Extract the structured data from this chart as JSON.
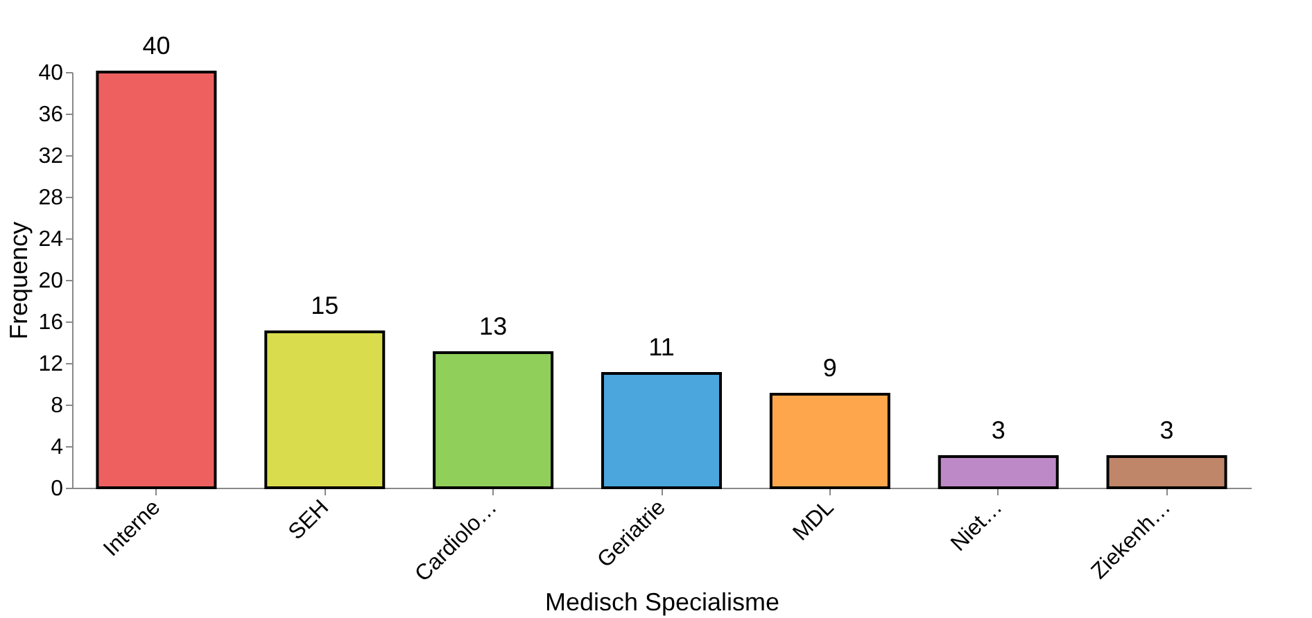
{
  "chart_data": {
    "type": "bar",
    "xlabel": "Medisch Specialisme",
    "ylabel": "Frequency",
    "categories": [
      "Interne",
      "SEH",
      "Cardiolo…",
      "Geriatrie",
      "MDL",
      "Niet…",
      "Ziekenh…"
    ],
    "values": [
      40,
      15,
      13,
      11,
      9,
      3,
      3
    ],
    "colors": [
      "#ee6060",
      "#d9dc4d",
      "#8fcf5a",
      "#4aa6dc",
      "#fea64c",
      "#bd89c7",
      "#c0866a"
    ],
    "ylim": [
      0,
      40
    ],
    "yticks": [
      0,
      4,
      8,
      12,
      16,
      20,
      24,
      28,
      32,
      36,
      40
    ],
    "grid": false,
    "data_labels": true
  }
}
